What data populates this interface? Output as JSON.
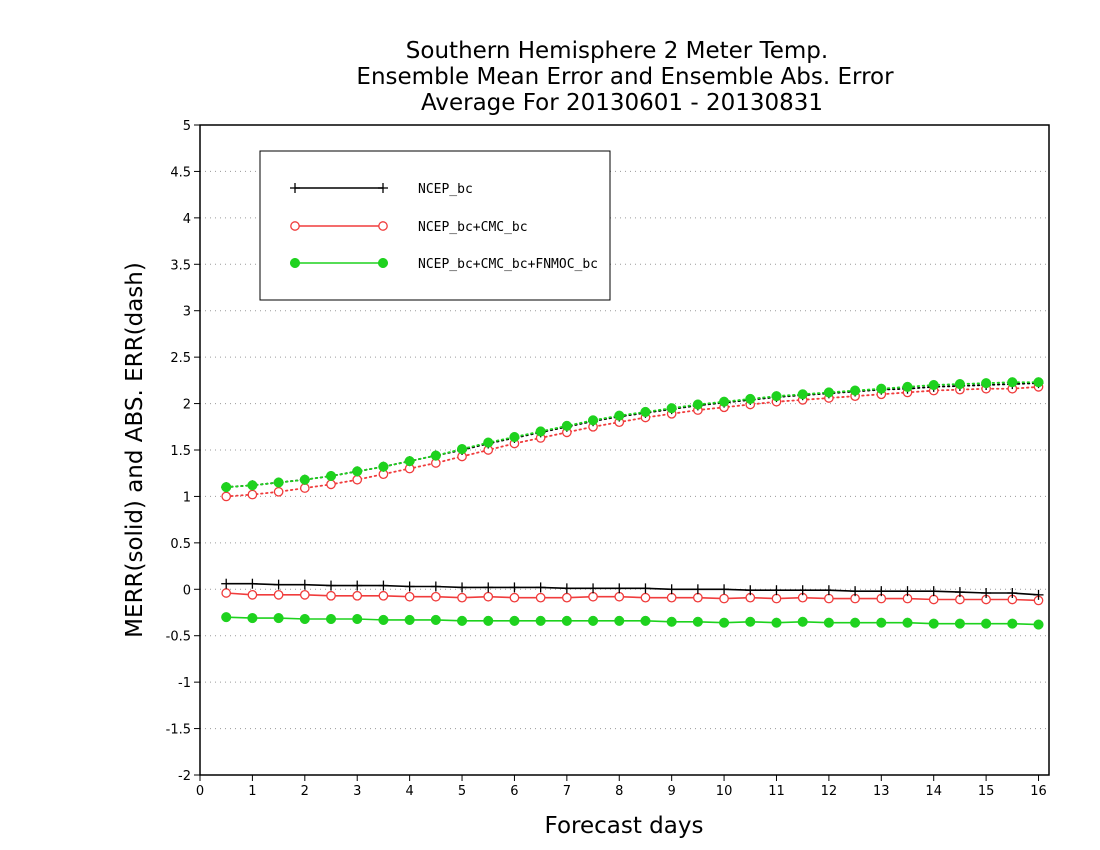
{
  "chart_data": {
    "type": "line",
    "title": [
      "Southern Hemisphere 2 Meter Temp.",
      "Ensemble Mean Error and Ensemble Abs. Error",
      "Average For 20130601 - 20130831"
    ],
    "xlabel": "Forecast days",
    "ylabel": "MERR(solid) and ABS. ERR(dash)",
    "xlim": [
      0,
      16.2
    ],
    "ylim": [
      -2,
      5
    ],
    "xticks": [
      0,
      1,
      2,
      3,
      4,
      5,
      6,
      7,
      8,
      9,
      10,
      11,
      12,
      13,
      14,
      15,
      16
    ],
    "xtick_labels": [
      "0",
      "1",
      "2",
      "3",
      "4",
      "5",
      "6",
      "7",
      "8",
      "9",
      "10",
      "11",
      "12",
      "13",
      "14",
      "15",
      "16"
    ],
    "yticks": [
      -2,
      -1.5,
      -1,
      -0.5,
      0,
      0.5,
      1,
      1.5,
      2,
      2.5,
      3,
      3.5,
      4,
      4.5,
      5
    ],
    "ytick_labels": [
      "-2",
      "-1.5",
      "-1",
      "-0.5",
      "0",
      "0.5",
      "1",
      "1.5",
      "2",
      "2.5",
      "3",
      "3.5",
      "4",
      "4.5",
      "5"
    ],
    "grid": "horizontal-dotted",
    "legend_position": "top-left",
    "x": [
      0.5,
      1,
      1.5,
      2,
      2.5,
      3,
      3.5,
      4,
      4.5,
      5,
      5.5,
      6,
      6.5,
      7,
      7.5,
      8,
      8.5,
      9,
      9.5,
      10,
      10.5,
      11,
      11.5,
      12,
      12.5,
      13,
      13.5,
      14,
      14.5,
      15,
      15.5,
      16
    ],
    "series": [
      {
        "name": "NCEP_bc",
        "color": "#000000",
        "marker": "plus",
        "merr": [
          0.06,
          0.06,
          0.05,
          0.05,
          0.04,
          0.04,
          0.04,
          0.03,
          0.03,
          0.02,
          0.02,
          0.02,
          0.02,
          0.01,
          0.01,
          0.01,
          0.01,
          0.0,
          0.0,
          0.0,
          -0.01,
          -0.01,
          -0.01,
          -0.01,
          -0.02,
          -0.02,
          -0.02,
          -0.02,
          -0.03,
          -0.04,
          -0.04,
          -0.06
        ],
        "abs_err": [
          1.1,
          1.12,
          1.15,
          1.18,
          1.22,
          1.27,
          1.32,
          1.38,
          1.44,
          1.5,
          1.57,
          1.63,
          1.69,
          1.75,
          1.81,
          1.86,
          1.9,
          1.94,
          1.98,
          2.01,
          2.04,
          2.07,
          2.09,
          2.11,
          2.13,
          2.15,
          2.16,
          2.18,
          2.19,
          2.2,
          2.21,
          2.22
        ]
      },
      {
        "name": "NCEP_bc+CMC_bc",
        "color": "#f03c3c",
        "marker": "open-circle",
        "merr": [
          -0.04,
          -0.06,
          -0.06,
          -0.06,
          -0.07,
          -0.07,
          -0.07,
          -0.08,
          -0.08,
          -0.09,
          -0.08,
          -0.09,
          -0.09,
          -0.09,
          -0.08,
          -0.08,
          -0.09,
          -0.09,
          -0.09,
          -0.1,
          -0.09,
          -0.1,
          -0.09,
          -0.1,
          -0.1,
          -0.1,
          -0.1,
          -0.11,
          -0.11,
          -0.11,
          -0.11,
          -0.12
        ],
        "abs_err": [
          1.0,
          1.02,
          1.05,
          1.09,
          1.13,
          1.18,
          1.24,
          1.3,
          1.36,
          1.43,
          1.5,
          1.57,
          1.63,
          1.69,
          1.75,
          1.8,
          1.85,
          1.89,
          1.93,
          1.96,
          1.99,
          2.02,
          2.04,
          2.06,
          2.08,
          2.1,
          2.12,
          2.14,
          2.15,
          2.16,
          2.16,
          2.18
        ]
      },
      {
        "name": "NCEP_bc+CMC_bc+FNMOC_bc",
        "color": "#1ed21e",
        "marker": "filled-circle",
        "merr": [
          -0.3,
          -0.31,
          -0.31,
          -0.32,
          -0.32,
          -0.32,
          -0.33,
          -0.33,
          -0.33,
          -0.34,
          -0.34,
          -0.34,
          -0.34,
          -0.34,
          -0.34,
          -0.34,
          -0.34,
          -0.35,
          -0.35,
          -0.36,
          -0.35,
          -0.36,
          -0.35,
          -0.36,
          -0.36,
          -0.36,
          -0.36,
          -0.37,
          -0.37,
          -0.37,
          -0.37,
          -0.38
        ],
        "abs_err": [
          1.1,
          1.12,
          1.15,
          1.18,
          1.22,
          1.27,
          1.32,
          1.38,
          1.44,
          1.51,
          1.58,
          1.64,
          1.7,
          1.76,
          1.82,
          1.87,
          1.91,
          1.95,
          1.99,
          2.02,
          2.05,
          2.08,
          2.1,
          2.12,
          2.14,
          2.16,
          2.18,
          2.2,
          2.21,
          2.22,
          2.23,
          2.23
        ]
      }
    ]
  }
}
